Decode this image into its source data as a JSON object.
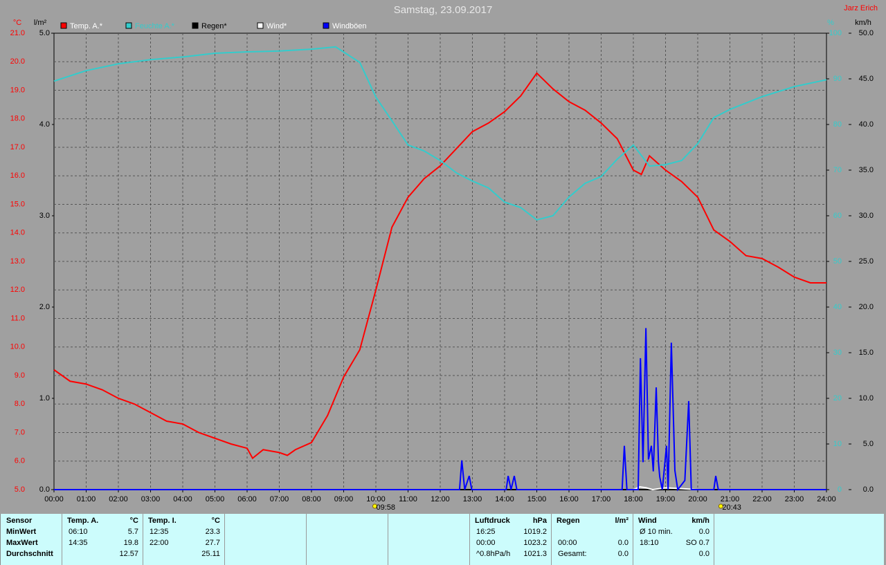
{
  "chart_data": {
    "type": "line",
    "title": "Samstag, 23.09.2017",
    "author": "Jarz Erich",
    "y_unit": "°C",
    "y_rain_unit": "l/m²",
    "y2_unit": "%",
    "y3_unit": "km/h",
    "xlim": [
      0,
      24
    ],
    "xticks": [
      {
        "value": 0,
        "label": "00:00"
      },
      {
        "value": 1,
        "label": "01:00"
      },
      {
        "value": 2,
        "label": "02:00"
      },
      {
        "value": 3,
        "label": "03:00"
      },
      {
        "value": 4,
        "label": "04:00"
      },
      {
        "value": 5,
        "label": "05:00"
      },
      {
        "value": 6,
        "label": "06:00"
      },
      {
        "value": 7,
        "label": "07:00"
      },
      {
        "value": 8,
        "label": "08:00"
      },
      {
        "value": 9,
        "label": "09:00"
      },
      {
        "value": 10,
        "label": "10:00"
      },
      {
        "value": 11,
        "label": "11:00"
      },
      {
        "value": 12,
        "label": "12:00"
      },
      {
        "value": 13,
        "label": "13:00"
      },
      {
        "value": 14,
        "label": "14:00"
      },
      {
        "value": 15,
        "label": "15:00"
      },
      {
        "value": 16,
        "label": "16:00"
      },
      {
        "value": 17,
        "label": "17:00"
      },
      {
        "value": 18,
        "label": "18:00"
      },
      {
        "value": 19,
        "label": "19:00"
      },
      {
        "value": 20,
        "label": "20:00"
      },
      {
        "value": 21,
        "label": "21:00"
      },
      {
        "value": 22,
        "label": "22:00"
      },
      {
        "value": 23,
        "label": "23:00"
      },
      {
        "value": 24,
        "label": "24:00"
      }
    ],
    "sun_markers": [
      {
        "value": 9.967,
        "label": "09:58"
      },
      {
        "value": 20.717,
        "label": "20:43"
      }
    ],
    "ylim": [
      5,
      21
    ],
    "yticks": [
      {
        "value": 5,
        "label": "5.0"
      },
      {
        "value": 6,
        "label": "6.0"
      },
      {
        "value": 7,
        "label": "7.0"
      },
      {
        "value": 8,
        "label": "8.0"
      },
      {
        "value": 9,
        "label": "9.0"
      },
      {
        "value": 10,
        "label": "10.0"
      },
      {
        "value": 11,
        "label": "11.0"
      },
      {
        "value": 12,
        "label": "12.0"
      },
      {
        "value": 13,
        "label": "13.0"
      },
      {
        "value": 14,
        "label": "14.0"
      },
      {
        "value": 15,
        "label": "15.0"
      },
      {
        "value": 16,
        "label": "16.0"
      },
      {
        "value": 17,
        "label": "17.0"
      },
      {
        "value": 18,
        "label": "18.0"
      },
      {
        "value": 19,
        "label": "19.0"
      },
      {
        "value": 20,
        "label": "20.0"
      },
      {
        "value": 21,
        "label": "21.0"
      }
    ],
    "y_rain_lim": [
      0,
      5
    ],
    "y_rain_ticks": [
      {
        "value": 0,
        "label": "0.0"
      },
      {
        "value": 1,
        "label": "1.0"
      },
      {
        "value": 2,
        "label": "2.0"
      },
      {
        "value": 3,
        "label": "3.0"
      },
      {
        "value": 4,
        "label": "4.0"
      },
      {
        "value": 5,
        "label": "5.0"
      }
    ],
    "y2lim": [
      0,
      100
    ],
    "y2ticks": [
      0,
      10,
      20,
      30,
      40,
      50,
      60,
      70,
      80,
      90,
      100
    ],
    "y3lim": [
      0,
      50
    ],
    "y3ticks": [
      {
        "value": 0,
        "label": "0.0"
      },
      {
        "value": 5,
        "label": "5.0"
      },
      {
        "value": 10,
        "label": "10.0"
      },
      {
        "value": 15,
        "label": "15.0"
      },
      {
        "value": 20,
        "label": "20.0"
      },
      {
        "value": 25,
        "label": "25.0"
      },
      {
        "value": 30,
        "label": "30.0"
      },
      {
        "value": 35,
        "label": "35.0"
      },
      {
        "value": 40,
        "label": "40.0"
      },
      {
        "value": 45,
        "label": "45.0"
      },
      {
        "value": 50,
        "label": "50.0"
      }
    ],
    "grid": true,
    "series": [
      {
        "name": "Temp. A.*",
        "color": "#ff0000",
        "axis": "y",
        "x": [
          0,
          0.5,
          1,
          1.5,
          2,
          2.5,
          3,
          3.5,
          4,
          4.5,
          5,
          5.5,
          6,
          6.17,
          6.5,
          7,
          7.25,
          7.5,
          8,
          8.5,
          9,
          9.5,
          10,
          10.5,
          11,
          11.5,
          12,
          12.5,
          13,
          13.5,
          14,
          14.5,
          15,
          15.5,
          16,
          16.5,
          17,
          17.5,
          18,
          18.25,
          18.5,
          19,
          19.5,
          20,
          20.5,
          21,
          21.5,
          22,
          22.5,
          23,
          23.5,
          24
        ],
        "values": [
          9.2,
          8.8,
          8.7,
          8.5,
          8.2,
          8.0,
          7.7,
          7.4,
          7.3,
          7.0,
          6.8,
          6.6,
          6.45,
          6.1,
          6.4,
          6.3,
          6.2,
          6.4,
          6.65,
          7.6,
          8.95,
          9.9,
          12.0,
          14.2,
          15.25,
          15.9,
          16.35,
          16.95,
          17.55,
          17.85,
          18.25,
          18.8,
          19.6,
          19.05,
          18.6,
          18.3,
          17.85,
          17.3,
          16.2,
          16.05,
          16.7,
          16.2,
          15.8,
          15.25,
          14.1,
          13.7,
          13.2,
          13.1,
          12.8,
          12.45,
          12.25,
          12.25
        ]
      },
      {
        "name": "Feuchte A.*",
        "color": "#33cccc",
        "axis": "y2",
        "x": [
          0,
          1,
          2,
          3,
          4,
          5,
          6,
          7,
          8,
          8.75,
          9.5,
          10,
          10.5,
          11,
          11.5,
          12,
          12.5,
          13,
          13.5,
          14,
          14.5,
          15,
          15.5,
          16,
          16.5,
          17,
          17.5,
          18,
          18.5,
          19,
          19.5,
          20,
          20.5,
          21,
          22,
          23,
          24
        ],
        "values": [
          89.5,
          91.8,
          93.3,
          94.2,
          94.8,
          95.6,
          95.9,
          96.1,
          96.5,
          97,
          93.6,
          86,
          80.8,
          75.5,
          74.2,
          72.1,
          69.4,
          67.6,
          66.1,
          63,
          61.8,
          59.1,
          60,
          64.1,
          67.1,
          68.6,
          72.4,
          75.5,
          70.9,
          71.2,
          72.1,
          75.8,
          81.5,
          83.3,
          86.1,
          88.3,
          89.8
        ]
      },
      {
        "name": "Regen*",
        "color": "#000000",
        "axis": "y_rain",
        "x": [
          0,
          24
        ],
        "values": [
          0,
          0
        ]
      },
      {
        "name": "Wind*",
        "color": "#ffffff",
        "axis": "y3",
        "x": [
          18,
          18.2,
          18.4,
          18.6,
          19,
          19.5,
          20
        ],
        "values": [
          0,
          0.3,
          0.2,
          0,
          0.2,
          0.1,
          0
        ]
      },
      {
        "name": "Windböen",
        "color": "#0000ff",
        "axis": "y3",
        "x": [
          0,
          12.6,
          12.67,
          12.76,
          12.9,
          12.98,
          14.05,
          14.11,
          14.2,
          14.3,
          14.38,
          17.65,
          17.72,
          17.8,
          18.15,
          18.22,
          18.3,
          18.39,
          18.47,
          18.56,
          18.62,
          18.71,
          18.78,
          18.82,
          18.9,
          19.03,
          19.08,
          19.18,
          19.29,
          19.38,
          19.6,
          19.72,
          19.8,
          20.5,
          20.56,
          20.64,
          24
        ],
        "values": [
          0,
          0,
          3.2,
          0,
          1.5,
          0,
          0,
          1.5,
          0,
          1.5,
          0,
          0,
          4.8,
          0,
          0,
          14.4,
          3,
          17.7,
          3.3,
          4.8,
          2,
          11.2,
          3,
          1.4,
          0,
          4.8,
          0,
          16.1,
          2.1,
          0,
          1,
          9.7,
          0,
          0,
          1.5,
          0,
          0
        ]
      }
    ]
  },
  "stats": {
    "row_labels": [
      "Sensor",
      "MinWert",
      "MaxWert",
      "Durchschnitt"
    ],
    "groups": [
      {
        "title": "Temp. A.",
        "unit": "°C",
        "rows": [
          [
            "06:10",
            "5.7"
          ],
          [
            "14:35",
            "19.8"
          ],
          [
            null,
            "12.57"
          ]
        ]
      },
      {
        "title": "Temp. I.",
        "unit": "°C",
        "rows": [
          [
            "12:35",
            "23.3"
          ],
          [
            "22:00",
            "27.7"
          ],
          [
            null,
            "25.11"
          ]
        ]
      },
      {
        "title": "Luftdruck",
        "unit": "hPa",
        "rows": [
          [
            "16:25",
            "1019.2"
          ],
          [
            "00:00",
            "1023.2"
          ],
          [
            "^0.8hPa/h",
            "1021.3"
          ]
        ]
      },
      {
        "title": "Regen",
        "unit": "l/m²",
        "rows": [
          [
            null,
            null
          ],
          [
            "00:00",
            "0.0"
          ],
          [
            "Gesamt:",
            "0.0"
          ]
        ]
      },
      {
        "title": "Wind",
        "unit": "km/h",
        "rows": [
          [
            "Ø 10 min.",
            "0.0"
          ],
          [
            "18:10",
            "SO 0.7"
          ],
          [
            null,
            "0.0"
          ]
        ]
      }
    ]
  }
}
